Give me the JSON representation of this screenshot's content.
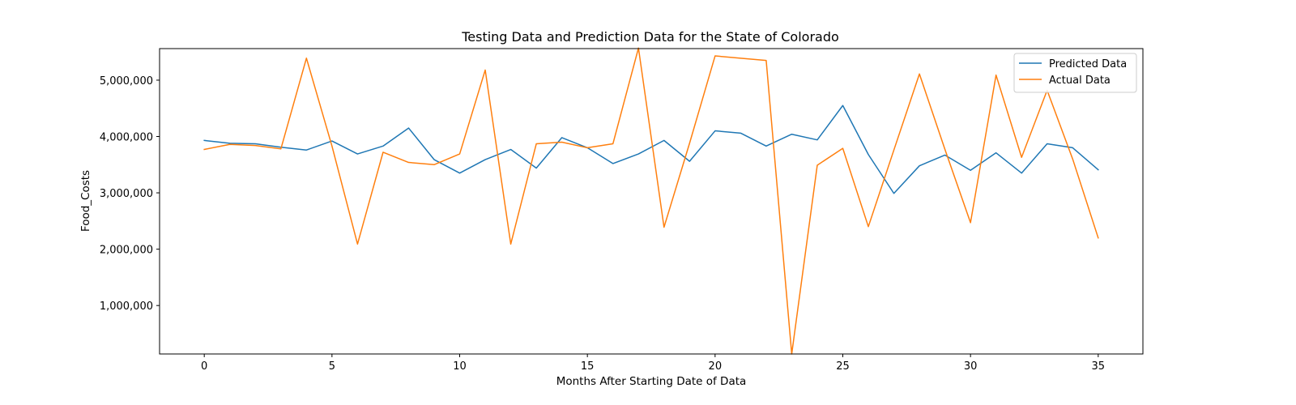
{
  "chart_data": {
    "type": "line",
    "title": "Testing Data and Prediction Data for the State of Colorado",
    "xlabel": "Months After Starting Date of Data",
    "ylabel": "Food_Costs",
    "xlim": [
      -1.75,
      36.75
    ],
    "ylim": [
      140000,
      5560000
    ],
    "x_ticks": [
      0,
      5,
      10,
      15,
      20,
      25,
      30,
      35
    ],
    "x_tick_labels": [
      "0",
      "5",
      "10",
      "15",
      "20",
      "25",
      "30",
      "35"
    ],
    "y_ticks": [
      1000000,
      2000000,
      3000000,
      4000000,
      5000000
    ],
    "y_tick_labels": [
      "1,000,000",
      "2,000,000",
      "3,000,000",
      "4,000,000",
      "5,000,000"
    ],
    "grid": false,
    "legend_position": "upper right",
    "x": [
      0,
      1,
      2,
      3,
      4,
      5,
      6,
      7,
      8,
      9,
      10,
      11,
      12,
      13,
      14,
      15,
      16,
      17,
      18,
      19,
      20,
      21,
      22,
      23,
      24,
      25,
      26,
      27,
      28,
      29,
      30,
      31,
      32,
      33,
      34,
      35
    ],
    "series": [
      {
        "name": "Predicted Data",
        "color": "#1f77b4",
        "values": [
          3930000,
          3880000,
          3870000,
          3810000,
          3760000,
          3920000,
          3690000,
          3830000,
          4150000,
          3590000,
          3350000,
          3590000,
          3770000,
          3440000,
          3980000,
          3800000,
          3520000,
          3690000,
          3930000,
          3560000,
          4100000,
          4060000,
          3830000,
          4040000,
          3940000,
          4550000,
          3680000,
          2990000,
          3480000,
          3670000,
          3400000,
          3710000,
          3350000,
          3870000,
          3800000,
          3410000
        ]
      },
      {
        "name": "Actual Data",
        "color": "#ff7f0e",
        "values": [
          3770000,
          3860000,
          3840000,
          3780000,
          5390000,
          3830000,
          2090000,
          3720000,
          3540000,
          3500000,
          3690000,
          5180000,
          2090000,
          3870000,
          3900000,
          3800000,
          3870000,
          5570000,
          2390000,
          3880000,
          5430000,
          5390000,
          5350000,
          140000,
          3490000,
          3790000,
          2400000,
          3760000,
          5110000,
          3770000,
          2470000,
          5090000,
          3630000,
          4820000,
          3600000,
          2200000
        ]
      }
    ]
  }
}
